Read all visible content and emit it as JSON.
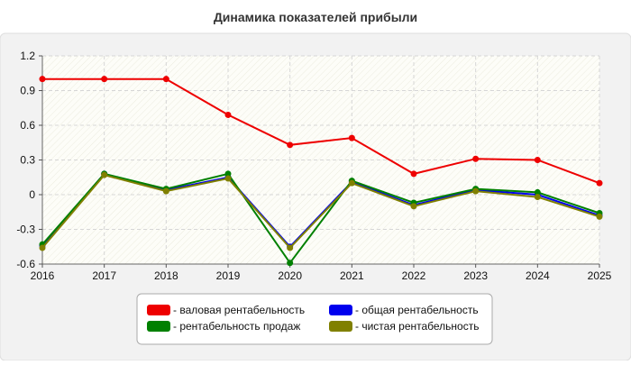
{
  "chart_data": {
    "type": "line",
    "title": "Динамика показателей прибыли",
    "xlabel": "",
    "ylabel": "",
    "categories": [
      "2016",
      "2017",
      "2018",
      "2019",
      "2020",
      "2021",
      "2022",
      "2023",
      "2024",
      "2025"
    ],
    "ylim": [
      -0.6,
      1.2
    ],
    "yticks": [
      1.2,
      0.9,
      0.6,
      0.3,
      0,
      -0.3,
      -0.6
    ],
    "ytick_labels": [
      "1.2",
      "0.9",
      "0.6",
      "0.3",
      "0",
      "-0.3",
      "-0.6"
    ],
    "grid": true,
    "legend_position": "bottom-center",
    "series": [
      {
        "name": "- валовая рентабельность",
        "color": "#ee0000",
        "values": [
          1.0,
          1.0,
          1.0,
          0.69,
          0.43,
          0.49,
          0.18,
          0.31,
          0.3,
          0.1
        ]
      },
      {
        "name": "- общая рентабельность",
        "color": "#0000ee",
        "values": [
          -0.44,
          0.18,
          0.04,
          0.15,
          -0.45,
          0.11,
          -0.09,
          0.04,
          0.0,
          -0.18
        ]
      },
      {
        "name": "- рентабельность продаж",
        "color": "#008000",
        "values": [
          -0.43,
          0.18,
          0.05,
          0.18,
          -0.59,
          0.12,
          -0.07,
          0.05,
          0.02,
          -0.16
        ]
      },
      {
        "name": "- чистая рентабельность",
        "color": "#808000",
        "values": [
          -0.46,
          0.17,
          0.03,
          0.14,
          -0.46,
          0.1,
          -0.1,
          0.03,
          -0.02,
          -0.19
        ]
      }
    ]
  }
}
